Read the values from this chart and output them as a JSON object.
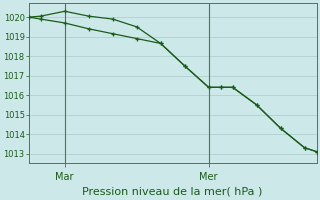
{
  "xlabel_label": "Pression niveau de la mer( hPa )",
  "bg_color": "#cce8e8",
  "grid_color": "#aacccc",
  "line_color": "#1a5c1a",
  "spine_color": "#4a7a4a",
  "ylim": [
    1012.5,
    1020.7
  ],
  "yticks": [
    1013,
    1014,
    1015,
    1016,
    1017,
    1018,
    1019,
    1020
  ],
  "xlim": [
    0,
    12.0
  ],
  "line1_x": [
    0.0,
    0.5,
    1.5,
    2.5,
    3.5,
    4.5,
    5.5,
    6.5,
    7.5,
    8.0,
    8.5,
    9.5,
    10.5,
    11.5,
    12.0
  ],
  "line1_y": [
    1020.0,
    1020.05,
    1020.3,
    1020.05,
    1019.9,
    1019.5,
    1018.65,
    1017.5,
    1016.4,
    1016.4,
    1016.4,
    1015.5,
    1014.3,
    1013.3,
    1013.1
  ],
  "line2_x": [
    0.0,
    0.5,
    1.5,
    2.5,
    3.5,
    4.5,
    5.5,
    6.5,
    7.5,
    8.0,
    8.5,
    9.5,
    10.5,
    11.5,
    12.0
  ],
  "line2_y": [
    1020.0,
    1019.9,
    1019.7,
    1019.4,
    1019.15,
    1018.9,
    1018.65,
    1017.5,
    1016.4,
    1016.4,
    1016.4,
    1015.5,
    1014.3,
    1013.3,
    1013.1
  ],
  "vline_x": [
    1.5,
    7.5
  ],
  "xtick_positions": [
    1.5,
    7.5
  ],
  "xtick_labels": [
    "Mar",
    "Mer"
  ],
  "ytick_fontsize": 6,
  "xtick_fontsize": 7,
  "xlabel_fontsize": 8
}
